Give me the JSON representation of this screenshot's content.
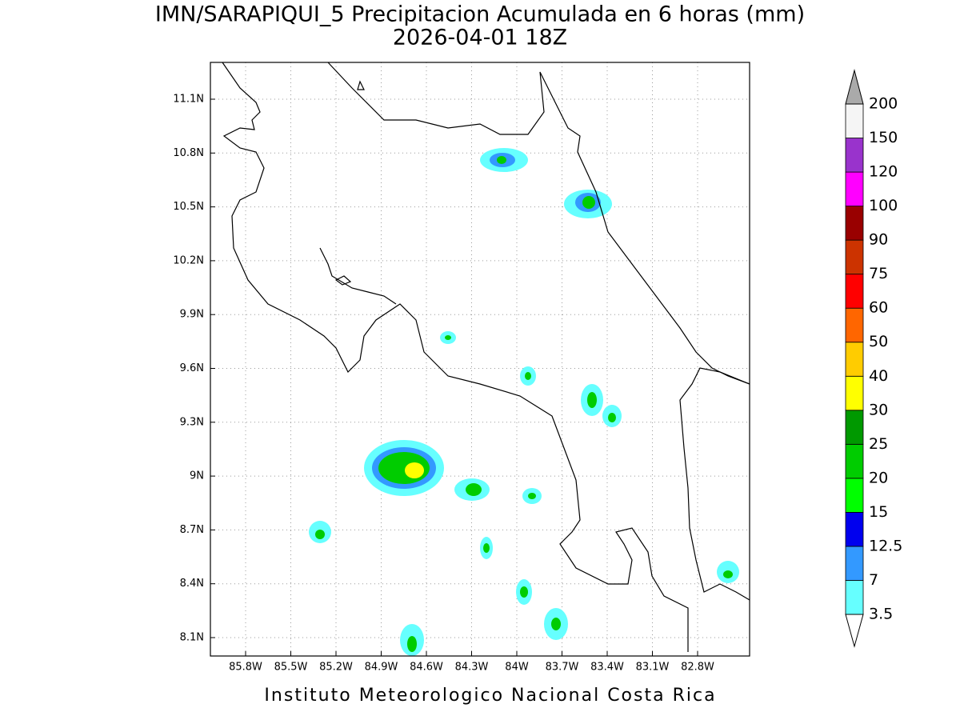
{
  "title": [
    "IMN/SARAPIQUI_5 Precipitacion Acumulada en 6 horas (mm)",
    "2026-04-01 18Z"
  ],
  "lon_ticks": [
    "85.8W",
    "85.5W",
    "85.2W",
    "84.9W",
    "84.6W",
    "84.3W",
    "84W",
    "83.7W",
    "83.4W",
    "83.1W",
    "82.8W"
  ],
  "lat_ticks": [
    "11.1N",
    "10.8N",
    "10.5N",
    "10.2N",
    "9.9N",
    "9.6N",
    "9.3N",
    "9N",
    "8.7N",
    "8.4N",
    "8.1N"
  ],
  "colorbar": {
    "levels": [
      "3.5",
      "7",
      "12.5",
      "15",
      "20",
      "25",
      "30",
      "40",
      "50",
      "60",
      "75",
      "90",
      "100",
      "120",
      "150",
      "200"
    ],
    "colors": [
      "#66ffff",
      "#3399ff",
      "#0000ee",
      "#00ff00",
      "#00cc00",
      "#009900",
      "#ffff00",
      "#ffcc00",
      "#ff6600",
      "#ff0000",
      "#cc3300",
      "#990000",
      "#ff00ff",
      "#9933cc",
      "#f5f5f5"
    ],
    "under_color": "#ffffff",
    "over_color": "#aaaaaa"
  },
  "footer": "Instituto Meteorologico Nacional Costa Rica"
}
